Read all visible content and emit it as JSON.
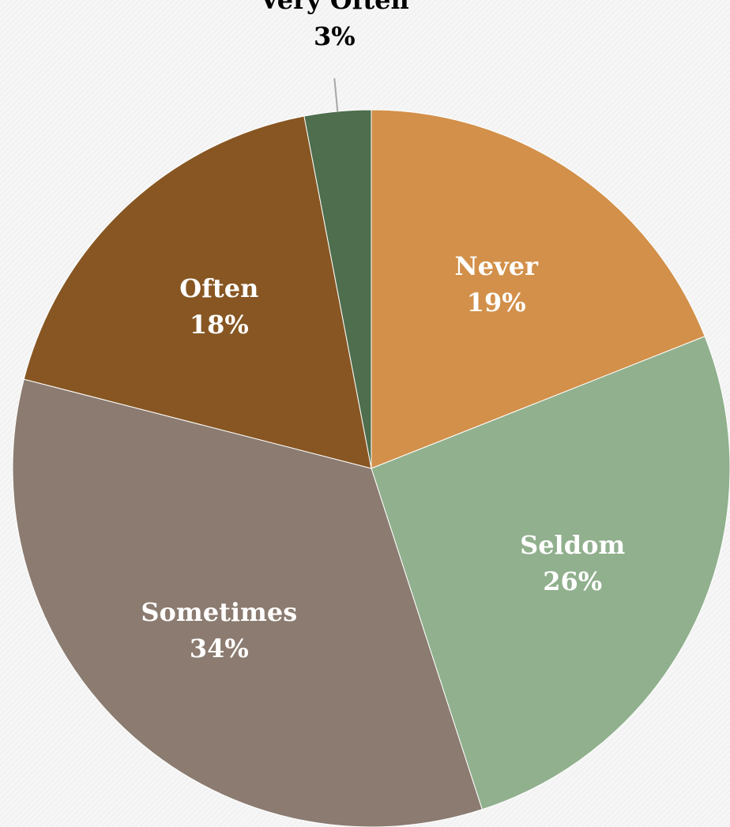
{
  "chart_data": {
    "type": "pie",
    "title": "",
    "categories": [
      "Never",
      "Seldom",
      "Sometimes",
      "Often",
      "Very Often"
    ],
    "values": [
      19,
      26,
      34,
      18,
      3
    ],
    "labels": [
      "19%",
      "26%",
      "34%",
      "18%",
      "3%"
    ],
    "colors": [
      "#d2904a",
      "#91b08e",
      "#8b7b70",
      "#875622",
      "#4e6e4e"
    ],
    "label_colors": [
      "#ffffff",
      "#ffffff",
      "#ffffff",
      "#ffffff",
      "#000000"
    ],
    "start_angle_deg": 0,
    "direction": "clockwise",
    "legend": "none"
  }
}
